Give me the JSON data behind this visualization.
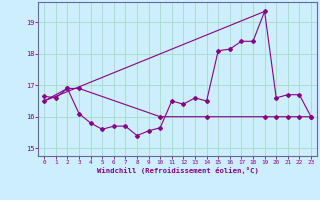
{
  "xlabel": "Windchill (Refroidissement éolien,°C)",
  "background_color": "#cceeff",
  "grid_color": "#aaddcc",
  "line_color": "#880088",
  "xlim": [
    -0.5,
    23.5
  ],
  "ylim": [
    14.75,
    19.65
  ],
  "yticks": [
    15,
    16,
    17,
    18,
    19
  ],
  "xticks": [
    0,
    1,
    2,
    3,
    4,
    5,
    6,
    7,
    8,
    9,
    10,
    11,
    12,
    13,
    14,
    15,
    16,
    17,
    18,
    19,
    20,
    21,
    22,
    23
  ],
  "line1_x": [
    0,
    1,
    2,
    3,
    4,
    5,
    6,
    7,
    8,
    9,
    10,
    11,
    12,
    13,
    14,
    15,
    16,
    17,
    18,
    19,
    20,
    21,
    22,
    23
  ],
  "line1_y": [
    16.65,
    16.6,
    16.9,
    16.1,
    15.8,
    15.6,
    15.7,
    15.7,
    15.4,
    15.55,
    15.65,
    16.5,
    16.4,
    16.6,
    16.5,
    18.1,
    18.15,
    18.4,
    18.4,
    19.35,
    16.6,
    16.7,
    16.7,
    16.0
  ],
  "line2_x": [
    0,
    2,
    3,
    10,
    14,
    19,
    20,
    21,
    22,
    23
  ],
  "line2_y": [
    16.5,
    16.9,
    16.9,
    16.0,
    16.0,
    16.0,
    16.0,
    16.0,
    16.0,
    16.0
  ],
  "line3_x": [
    0,
    19
  ],
  "line3_y": [
    16.5,
    19.35
  ]
}
